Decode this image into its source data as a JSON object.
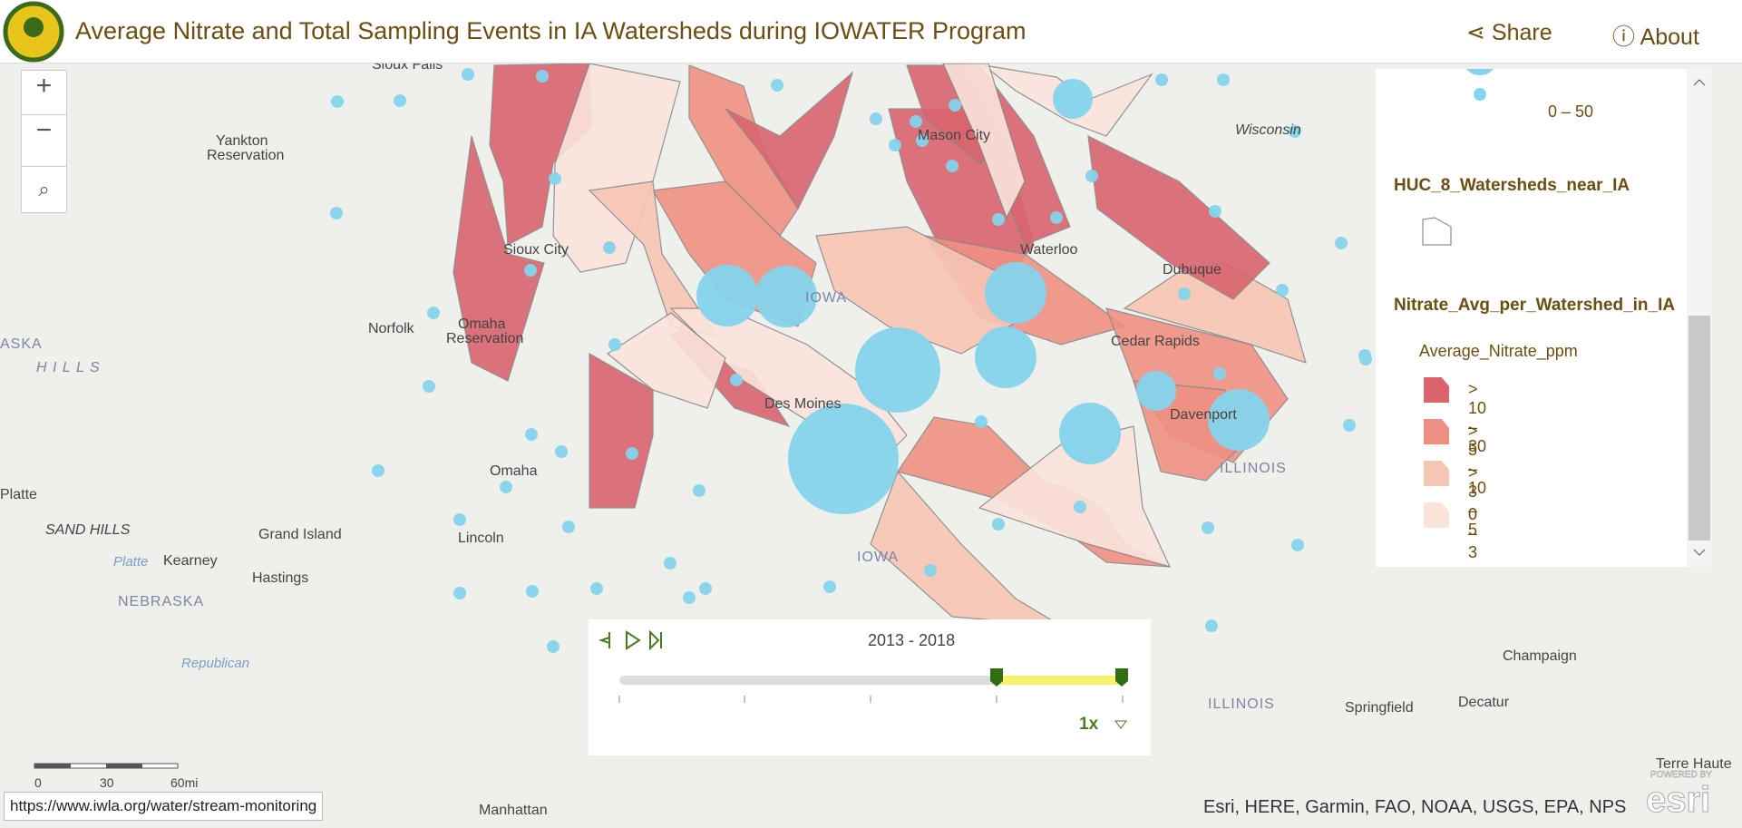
{
  "header": {
    "title": "Average Nitrate and Total Sampling Events in IA Watersheds during IOWATER Program",
    "share": "Share",
    "about": "About"
  },
  "legend": {
    "size_item": "0 – 50",
    "layer1": "HUC_8_Watersheds_near_IA",
    "layer2": "Nitrate_Avg_per_Watershed_in_IA",
    "field": "Average_Nitrate_ppm",
    "classes": [
      {
        "label": "> 10 – 30",
        "color": "#d9646e"
      },
      {
        "label": "> 5 – 10",
        "color": "#ef9182"
      },
      {
        "label": "> 3 – 5",
        "color": "#f7c5b4"
      },
      {
        "label": "0 – 3",
        "color": "#fbe4dc"
      }
    ]
  },
  "time_slider": {
    "range": "2013 - 2018",
    "speed": "1x"
  },
  "scale_bar": {
    "labels": [
      "0",
      "30",
      "60mi"
    ]
  },
  "status_url": "https://www.iwla.org/water/stream-monitoring",
  "attribution": "Esri, HERE, Garmin, FAO, NOAA, USGS, EPA, NPS",
  "logo": {
    "powered": "POWERED BY",
    "name": "esri"
  },
  "places": [
    "Sioux Falls",
    "Yankton",
    "Reservation",
    "Sioux City",
    "Norfolk",
    "Omaha",
    "Reservation",
    "ASKA",
    "H I L L S",
    "Omaha",
    "Platte",
    "SAND HILLS",
    "Grand Island",
    "Kearney",
    "Lincoln",
    "Hastings",
    "NEBRASKA",
    "Platte",
    "Republican",
    "Manhattan",
    "Des Moines",
    "IOWA",
    "IOWA",
    "Waterloo",
    "Dubuque",
    "Cedar Rapids",
    "Davenport",
    "ILLINOIS",
    "ILLINOIS",
    "Wisconsin",
    "Mason City",
    "Champaign",
    "Springfield",
    "Decatur",
    "Terre Haute"
  ]
}
